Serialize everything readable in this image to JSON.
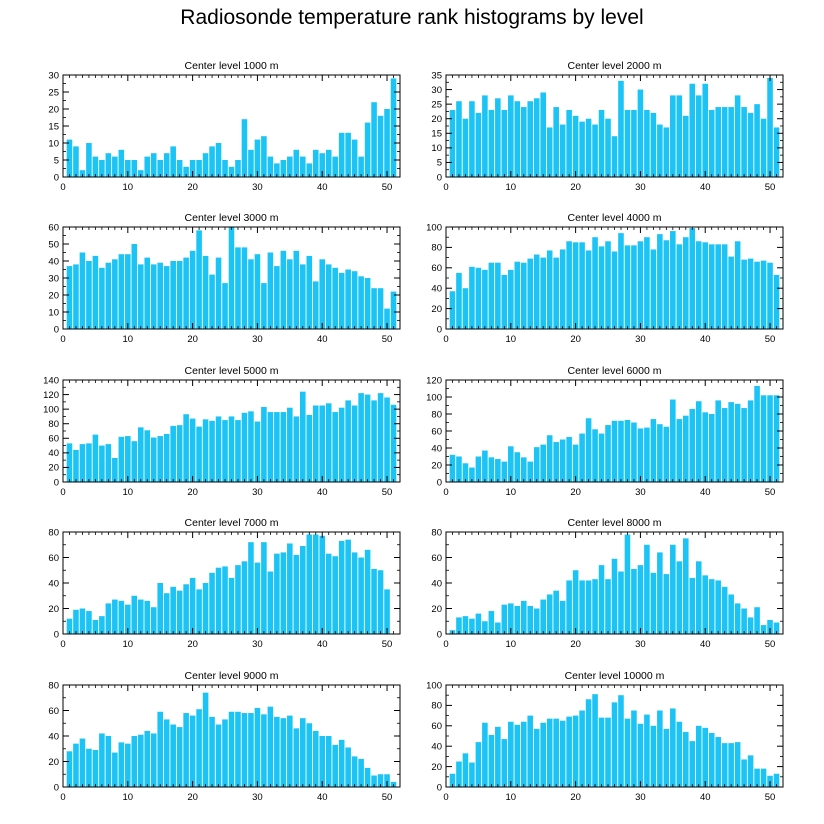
{
  "title": "Radiosonde temperature rank histograms by level",
  "colors": {
    "bar": "#1cc3f5",
    "axis": "#000000"
  },
  "chart_data": [
    {
      "type": "bar",
      "title": "Center level 1000 m",
      "xlim": [
        0,
        52
      ],
      "ylim": [
        0,
        30
      ],
      "xticks": [
        0,
        10,
        20,
        30,
        40,
        50
      ],
      "yticks": [
        0,
        5,
        10,
        15,
        20,
        25,
        30
      ],
      "x": [
        1,
        2,
        3,
        4,
        5,
        6,
        7,
        8,
        9,
        10,
        11,
        12,
        13,
        14,
        15,
        16,
        17,
        18,
        19,
        20,
        21,
        22,
        23,
        24,
        25,
        26,
        27,
        28,
        29,
        30,
        31,
        32,
        33,
        34,
        35,
        36,
        37,
        38,
        39,
        40,
        41,
        42,
        43,
        44,
        45,
        46,
        47,
        48,
        49,
        50,
        51
      ],
      "values": [
        11,
        9,
        2,
        10,
        6,
        5,
        7,
        6,
        8,
        5,
        5,
        2,
        6,
        7,
        5,
        7,
        9,
        5,
        3,
        5,
        5,
        7,
        9,
        10,
        5,
        3,
        5,
        17,
        8,
        11,
        12,
        6,
        4,
        5,
        6,
        8,
        6,
        4,
        8,
        7,
        8,
        6,
        13,
        13,
        11,
        6,
        16,
        22,
        18,
        20,
        29
      ]
    },
    {
      "type": "bar",
      "title": "Center level 2000 m",
      "xlim": [
        0,
        52
      ],
      "ylim": [
        0,
        35
      ],
      "xticks": [
        0,
        10,
        20,
        30,
        40,
        50
      ],
      "yticks": [
        0,
        5,
        10,
        15,
        20,
        25,
        30,
        35
      ],
      "x": [
        1,
        2,
        3,
        4,
        5,
        6,
        7,
        8,
        9,
        10,
        11,
        12,
        13,
        14,
        15,
        16,
        17,
        18,
        19,
        20,
        21,
        22,
        23,
        24,
        25,
        26,
        27,
        28,
        29,
        30,
        31,
        32,
        33,
        34,
        35,
        36,
        37,
        38,
        39,
        40,
        41,
        42,
        43,
        44,
        45,
        46,
        47,
        48,
        49,
        50,
        51
      ],
      "values": [
        23,
        26,
        20,
        26,
        22,
        28,
        23,
        27,
        23,
        28,
        26,
        24,
        26,
        27,
        29,
        17,
        24,
        18,
        23,
        21,
        19,
        20,
        18,
        23,
        20,
        14,
        33,
        23,
        23,
        30,
        23,
        22,
        18,
        17,
        28,
        28,
        21,
        32,
        28,
        32,
        23,
        24,
        24,
        24,
        28,
        24,
        22,
        25,
        20,
        34,
        17
      ]
    },
    {
      "type": "bar",
      "title": "Center level 3000 m",
      "xlim": [
        0,
        52
      ],
      "ylim": [
        0,
        60
      ],
      "xticks": [
        0,
        10,
        20,
        30,
        40,
        50
      ],
      "yticks": [
        0,
        10,
        20,
        30,
        40,
        50,
        60
      ],
      "x": [
        1,
        2,
        3,
        4,
        5,
        6,
        7,
        8,
        9,
        10,
        11,
        12,
        13,
        14,
        15,
        16,
        17,
        18,
        19,
        20,
        21,
        22,
        23,
        24,
        25,
        26,
        27,
        28,
        29,
        30,
        31,
        32,
        33,
        34,
        35,
        36,
        37,
        38,
        39,
        40,
        41,
        42,
        43,
        44,
        45,
        46,
        47,
        48,
        49,
        50,
        51
      ],
      "values": [
        37,
        38,
        45,
        40,
        43,
        36,
        39,
        41,
        44,
        44,
        50,
        38,
        42,
        38,
        39,
        37,
        40,
        40,
        42,
        46,
        58,
        43,
        32,
        42,
        27,
        60,
        48,
        48,
        41,
        44,
        27,
        45,
        37,
        46,
        41,
        46,
        38,
        43,
        28,
        41,
        38,
        36,
        33,
        35,
        34,
        31,
        30,
        24,
        24,
        12,
        22
      ]
    },
    {
      "type": "bar",
      "title": "Center level 4000 m",
      "xlim": [
        0,
        52
      ],
      "ylim": [
        0,
        100
      ],
      "xticks": [
        0,
        10,
        20,
        30,
        40,
        50
      ],
      "yticks": [
        0,
        20,
        40,
        60,
        80,
        100
      ],
      "x": [
        1,
        2,
        3,
        4,
        5,
        6,
        7,
        8,
        9,
        10,
        11,
        12,
        13,
        14,
        15,
        16,
        17,
        18,
        19,
        20,
        21,
        22,
        23,
        24,
        25,
        26,
        27,
        28,
        29,
        30,
        31,
        32,
        33,
        34,
        35,
        36,
        37,
        38,
        39,
        40,
        41,
        42,
        43,
        44,
        45,
        46,
        47,
        48,
        49,
        50,
        51
      ],
      "values": [
        37,
        55,
        40,
        61,
        60,
        58,
        65,
        65,
        53,
        58,
        66,
        65,
        69,
        73,
        70,
        77,
        70,
        78,
        86,
        85,
        85,
        77,
        90,
        81,
        86,
        76,
        94,
        82,
        82,
        86,
        90,
        78,
        93,
        87,
        96,
        83,
        90,
        99,
        86,
        85,
        83,
        83,
        83,
        71,
        86,
        68,
        69,
        66,
        67,
        65,
        53
      ]
    },
    {
      "type": "bar",
      "title": "Center level 5000 m",
      "xlim": [
        0,
        52
      ],
      "ylim": [
        0,
        140
      ],
      "xticks": [
        0,
        10,
        20,
        30,
        40,
        50
      ],
      "yticks": [
        0,
        20,
        40,
        60,
        80,
        100,
        120,
        140
      ],
      "x": [
        1,
        2,
        3,
        4,
        5,
        6,
        7,
        8,
        9,
        10,
        11,
        12,
        13,
        14,
        15,
        16,
        17,
        18,
        19,
        20,
        21,
        22,
        23,
        24,
        25,
        26,
        27,
        28,
        29,
        30,
        31,
        32,
        33,
        34,
        35,
        36,
        37,
        38,
        39,
        40,
        41,
        42,
        43,
        44,
        45,
        46,
        47,
        48,
        49,
        50,
        51
      ],
      "values": [
        53,
        44,
        52,
        53,
        65,
        50,
        52,
        33,
        62,
        63,
        56,
        75,
        71,
        61,
        63,
        66,
        77,
        78,
        93,
        87,
        76,
        86,
        84,
        90,
        85,
        90,
        85,
        95,
        97,
        83,
        103,
        96,
        96,
        96,
        102,
        90,
        124,
        92,
        105,
        105,
        108,
        96,
        102,
        112,
        105,
        122,
        120,
        112,
        122,
        116,
        106
      ]
    },
    {
      "type": "bar",
      "title": "Center level 6000 m",
      "xlim": [
        0,
        52
      ],
      "ylim": [
        0,
        120
      ],
      "xticks": [
        0,
        10,
        20,
        30,
        40,
        50
      ],
      "yticks": [
        0,
        20,
        40,
        60,
        80,
        100,
        120
      ],
      "x": [
        1,
        2,
        3,
        4,
        5,
        6,
        7,
        8,
        9,
        10,
        11,
        12,
        13,
        14,
        15,
        16,
        17,
        18,
        19,
        20,
        21,
        22,
        23,
        24,
        25,
        26,
        27,
        28,
        29,
        30,
        31,
        32,
        33,
        34,
        35,
        36,
        37,
        38,
        39,
        40,
        41,
        42,
        43,
        44,
        45,
        46,
        47,
        48,
        49,
        50,
        51
      ],
      "values": [
        32,
        30,
        22,
        17,
        30,
        37,
        29,
        27,
        24,
        42,
        35,
        29,
        24,
        41,
        44,
        55,
        47,
        50,
        53,
        44,
        57,
        75,
        62,
        57,
        67,
        72,
        72,
        73,
        70,
        63,
        64,
        74,
        68,
        65,
        97,
        74,
        78,
        86,
        95,
        82,
        80,
        96,
        87,
        94,
        92,
        87,
        96,
        113,
        102,
        102,
        102
      ]
    },
    {
      "type": "bar",
      "title": "Center level 7000 m",
      "xlim": [
        0,
        52
      ],
      "ylim": [
        0,
        80
      ],
      "xticks": [
        0,
        10,
        20,
        30,
        40,
        50
      ],
      "yticks": [
        0,
        20,
        40,
        60,
        80
      ],
      "x": [
        1,
        2,
        3,
        4,
        5,
        6,
        7,
        8,
        9,
        10,
        11,
        12,
        13,
        14,
        15,
        16,
        17,
        18,
        19,
        20,
        21,
        22,
        23,
        24,
        25,
        26,
        27,
        28,
        29,
        30,
        31,
        32,
        33,
        34,
        35,
        36,
        37,
        38,
        39,
        40,
        41,
        42,
        43,
        44,
        45,
        46,
        47,
        48,
        49,
        50,
        51
      ],
      "values": [
        12,
        19,
        20,
        18,
        11,
        14,
        24,
        27,
        26,
        23,
        30,
        27,
        26,
        21,
        40,
        32,
        37,
        34,
        39,
        44,
        35,
        40,
        48,
        52,
        53,
        44,
        54,
        57,
        72,
        56,
        72,
        49,
        63,
        64,
        71,
        62,
        69,
        78,
        78,
        77,
        63,
        61,
        73,
        74,
        64,
        60,
        66,
        51,
        50,
        35,
        0
      ]
    },
    {
      "type": "bar",
      "title": "Center level 8000 m",
      "xlim": [
        0,
        52
      ],
      "ylim": [
        0,
        80
      ],
      "xticks": [
        0,
        10,
        20,
        30,
        40,
        50
      ],
      "yticks": [
        0,
        20,
        40,
        60,
        80
      ],
      "x": [
        1,
        2,
        3,
        4,
        5,
        6,
        7,
        8,
        9,
        10,
        11,
        12,
        13,
        14,
        15,
        16,
        17,
        18,
        19,
        20,
        21,
        22,
        23,
        24,
        25,
        26,
        27,
        28,
        29,
        30,
        31,
        32,
        33,
        34,
        35,
        36,
        37,
        38,
        39,
        40,
        41,
        42,
        43,
        44,
        45,
        46,
        47,
        48,
        49,
        50,
        51
      ],
      "values": [
        3,
        13,
        14,
        12,
        16,
        10,
        18,
        9,
        23,
        24,
        22,
        26,
        22,
        20,
        27,
        31,
        34,
        26,
        42,
        50,
        42,
        42,
        43,
        54,
        43,
        59,
        49,
        78,
        51,
        54,
        70,
        48,
        64,
        47,
        70,
        57,
        75,
        44,
        57,
        46,
        43,
        42,
        37,
        31,
        24,
        20,
        13,
        21,
        7,
        11,
        9
      ]
    },
    {
      "type": "bar",
      "title": "Center level 9000 m",
      "xlim": [
        0,
        52
      ],
      "ylim": [
        0,
        80
      ],
      "xticks": [
        0,
        10,
        20,
        30,
        40,
        50
      ],
      "yticks": [
        0,
        20,
        40,
        60,
        80
      ],
      "x": [
        1,
        2,
        3,
        4,
        5,
        6,
        7,
        8,
        9,
        10,
        11,
        12,
        13,
        14,
        15,
        16,
        17,
        18,
        19,
        20,
        21,
        22,
        23,
        24,
        25,
        26,
        27,
        28,
        29,
        30,
        31,
        32,
        33,
        34,
        35,
        36,
        37,
        38,
        39,
        40,
        41,
        42,
        43,
        44,
        45,
        46,
        47,
        48,
        49,
        50,
        51
      ],
      "values": [
        28,
        34,
        38,
        30,
        29,
        42,
        40,
        27,
        35,
        34,
        40,
        41,
        44,
        42,
        59,
        53,
        49,
        47,
        58,
        56,
        61,
        74,
        55,
        49,
        53,
        59,
        59,
        58,
        58,
        62,
        57,
        63,
        55,
        54,
        56,
        46,
        54,
        50,
        44,
        40,
        40,
        33,
        37,
        31,
        24,
        22,
        15,
        9,
        10,
        10,
        4
      ]
    },
    {
      "type": "bar",
      "title": "Center level 10000 m",
      "xlim": [
        0,
        52
      ],
      "ylim": [
        0,
        100
      ],
      "xticks": [
        0,
        10,
        20,
        30,
        40,
        50
      ],
      "yticks": [
        0,
        20,
        40,
        60,
        80,
        100
      ],
      "x": [
        1,
        2,
        3,
        4,
        5,
        6,
        7,
        8,
        9,
        10,
        11,
        12,
        13,
        14,
        15,
        16,
        17,
        18,
        19,
        20,
        21,
        22,
        23,
        24,
        25,
        26,
        27,
        28,
        29,
        30,
        31,
        32,
        33,
        34,
        35,
        36,
        37,
        38,
        39,
        40,
        41,
        42,
        43,
        44,
        45,
        46,
        47,
        48,
        49,
        50,
        51
      ],
      "values": [
        13,
        25,
        33,
        24,
        44,
        63,
        51,
        59,
        47,
        64,
        61,
        64,
        70,
        57,
        63,
        67,
        67,
        65,
        69,
        70,
        75,
        86,
        91,
        68,
        68,
        83,
        90,
        67,
        75,
        62,
        71,
        60,
        75,
        57,
        77,
        64,
        54,
        45,
        60,
        58,
        53,
        49,
        43,
        43,
        44,
        27,
        31,
        18,
        18,
        11,
        13
      ]
    }
  ]
}
